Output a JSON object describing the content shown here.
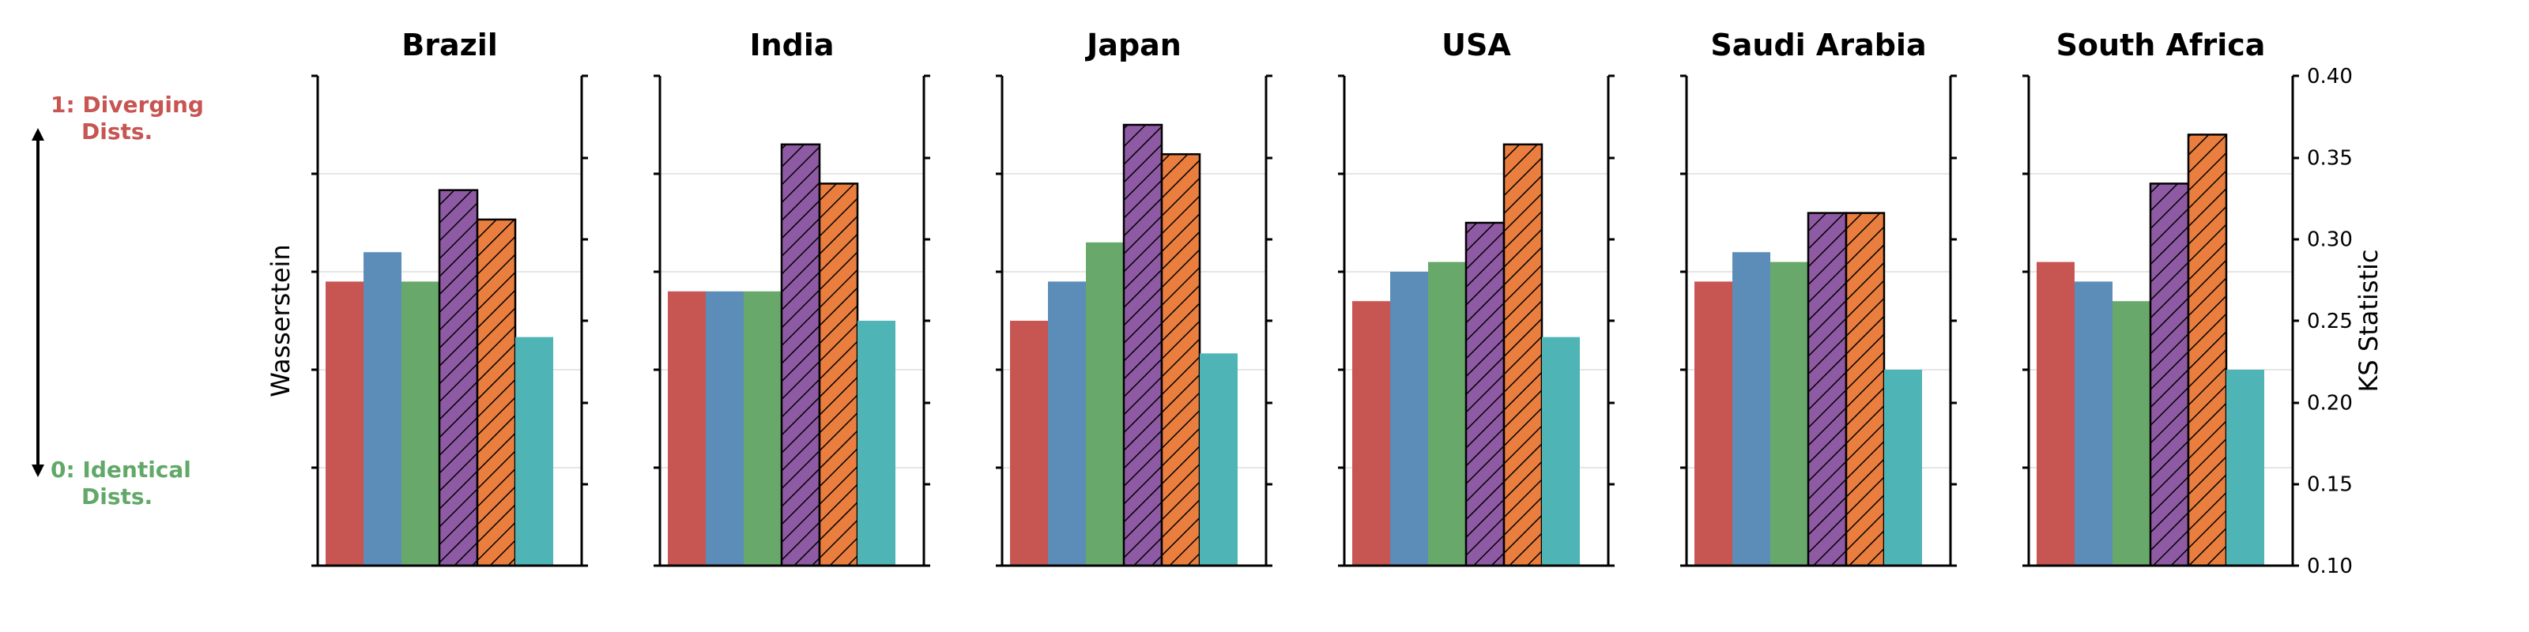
{
  "chart_data": {
    "type": "bar",
    "left_axis_label": "Wasserstein",
    "right_axis_label": "KS Statistic",
    "right_ylim": [
      0.1,
      0.4
    ],
    "right_ticks": [
      "0.40",
      "0.35",
      "0.30",
      "0.25",
      "0.20",
      "0.15",
      "0.10"
    ],
    "scale_annotation": {
      "top_line1": "1: Diverging",
      "top_line2": "Dists.",
      "bottom_line1": "0: Identical",
      "bottom_line2": "Dists.",
      "top_color": "#c75552",
      "bottom_color": "#62a868"
    },
    "series_colors": [
      "#c75552",
      "#5b8db8",
      "#68a96b",
      "#8f5aa4",
      "#ea7e3e",
      "#4fb4b5"
    ],
    "series_hatched": [
      false,
      false,
      false,
      true,
      true,
      false
    ],
    "panels": [
      {
        "title": "Brazil",
        "values": [
          0.274,
          0.292,
          0.274,
          0.33,
          0.312,
          0.24
        ]
      },
      {
        "title": "India",
        "values": [
          0.268,
          0.268,
          0.268,
          0.358,
          0.334,
          0.25
        ]
      },
      {
        "title": "Japan",
        "values": [
          0.25,
          0.274,
          0.298,
          0.37,
          0.352,
          0.23
        ]
      },
      {
        "title": "USA",
        "values": [
          0.262,
          0.28,
          0.286,
          0.31,
          0.358,
          0.24
        ]
      },
      {
        "title": "Saudi Arabia",
        "values": [
          0.274,
          0.292,
          0.286,
          0.316,
          0.316,
          0.22
        ]
      },
      {
        "title": "South Africa",
        "values": [
          0.286,
          0.274,
          0.262,
          0.334,
          0.364,
          0.22
        ]
      }
    ]
  }
}
